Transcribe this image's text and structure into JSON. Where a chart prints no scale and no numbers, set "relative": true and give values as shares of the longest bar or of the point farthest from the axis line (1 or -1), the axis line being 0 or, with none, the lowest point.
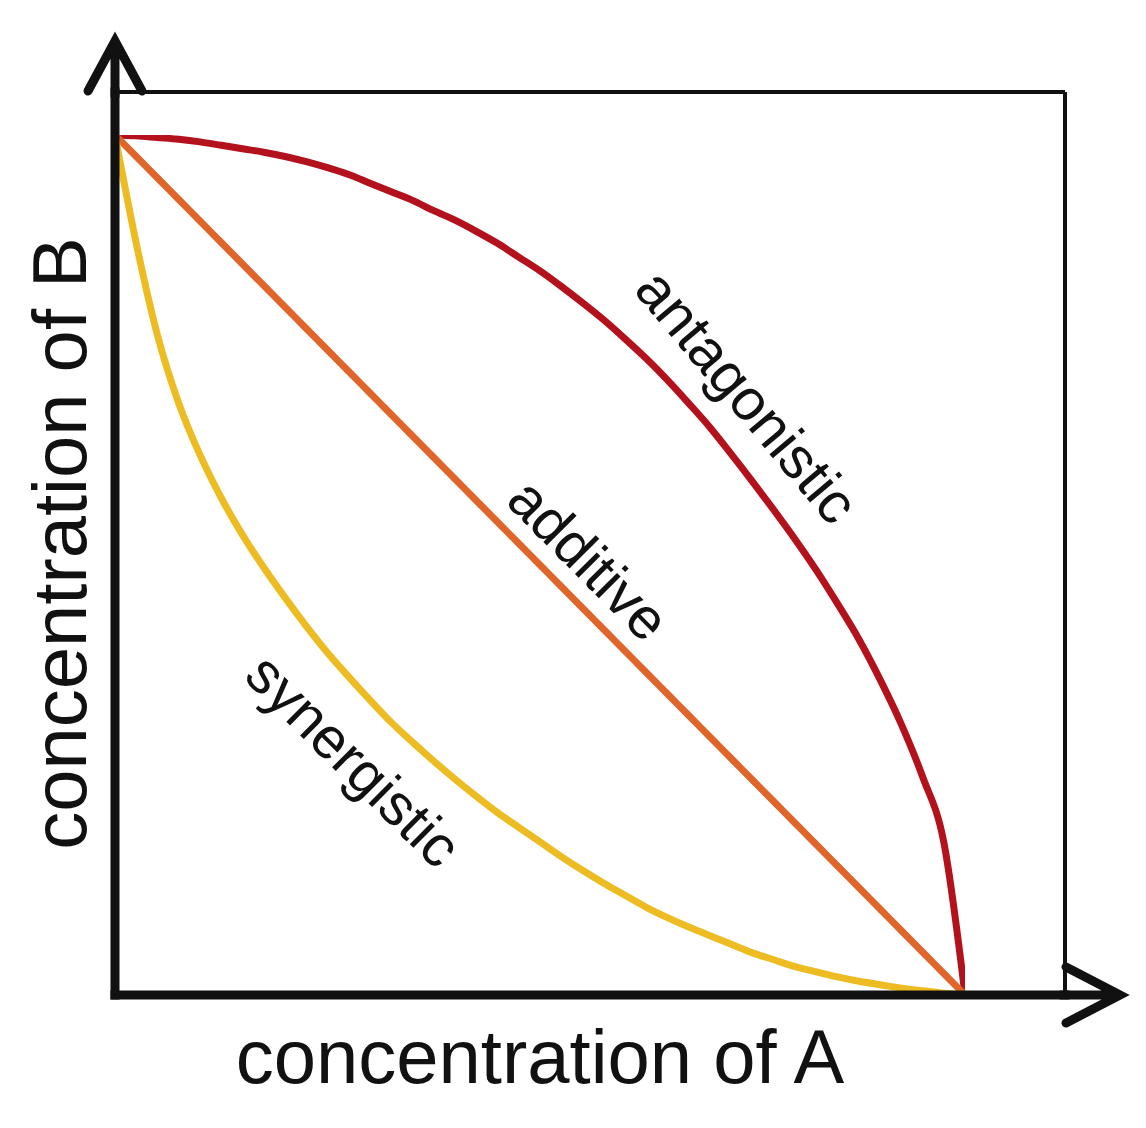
{
  "chart_data": {
    "type": "line",
    "xlabel": "concentration of A",
    "ylabel": "concentration of B",
    "relative": true,
    "marker": "none",
    "line_style": "solid",
    "categories": [
      null,
      null,
      null,
      null,
      null,
      null,
      null,
      null,
      null,
      null,
      null,
      null,
      null,
      null,
      null,
      null,
      null,
      null,
      null,
      null,
      null,
      null,
      null,
      null,
      null,
      null,
      null,
      null,
      null,
      null,
      null,
      null,
      null,
      null,
      null,
      null,
      null,
      null,
      null,
      null,
      null
    ],
    "series": [
      {
        "name": "antagonistic",
        "color": "#b3121c",
        "values": [
          1,
          0.999,
          0.997,
          0.995,
          0.992,
          0.988,
          0.984,
          0.98,
          0.975,
          0.969,
          0.962,
          0.954,
          0.944,
          0.934,
          0.924,
          0.912,
          0.901,
          0.888,
          0.874,
          0.858,
          0.842,
          0.824,
          0.805,
          0.785,
          0.763,
          0.74,
          0.715,
          0.688,
          0.66,
          0.629,
          0.597,
          0.564,
          0.53,
          0.494,
          0.455,
          0.414,
          0.367,
          0.315,
          0.254,
          0.178,
          0
        ]
      },
      {
        "name": "additive",
        "color": "#e0652a",
        "values": [
          1,
          0.975,
          0.95,
          0.925,
          0.9,
          0.875,
          0.85,
          0.825,
          0.8,
          0.775,
          0.75,
          0.725,
          0.7,
          0.675,
          0.65,
          0.625,
          0.6,
          0.575,
          0.55,
          0.525,
          0.5,
          0.475,
          0.45,
          0.425,
          0.4,
          0.375,
          0.35,
          0.325,
          0.3,
          0.275,
          0.25,
          0.225,
          0.2,
          0.175,
          0.15,
          0.125,
          0.1,
          0.075,
          0.05,
          0.025,
          0
        ]
      },
      {
        "name": "synergistic",
        "color": "#ecbc22",
        "values": [
          1,
          0.874,
          0.767,
          0.688,
          0.628,
          0.578,
          0.535,
          0.497,
          0.462,
          0.429,
          0.398,
          0.37,
          0.343,
          0.317,
          0.294,
          0.272,
          0.251,
          0.231,
          0.212,
          0.195,
          0.178,
          0.161,
          0.145,
          0.13,
          0.116,
          0.102,
          0.09,
          0.079,
          0.069,
          0.059,
          0.049,
          0.041,
          0.033,
          0.027,
          0.021,
          0.016,
          0.012,
          0.008,
          0.005,
          0.002,
          0
        ]
      }
    ]
  }
}
